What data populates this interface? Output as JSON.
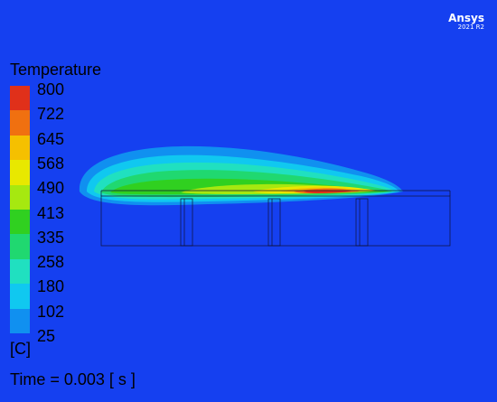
{
  "brand": {
    "name": "Ansys",
    "version": "2021 R2"
  },
  "legend": {
    "title": "Temperature",
    "unit": "[C]",
    "values": [
      "800",
      "722",
      "645",
      "568",
      "490",
      "413",
      "335",
      "258",
      "180",
      "102",
      "25"
    ],
    "colors": [
      "#e0301a",
      "#f07010",
      "#f5c000",
      "#e8e800",
      "#a6e810",
      "#30d020",
      "#20d870",
      "#20e0c0",
      "#10c8f0",
      "#1090f0",
      "#1540f0"
    ]
  },
  "time_readout": "Time = 0.003 [ s ]",
  "colors": {
    "background": "#1540f0",
    "outline": "#111133"
  }
}
